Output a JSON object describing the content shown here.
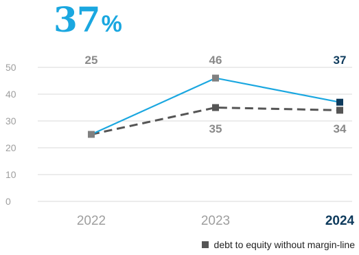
{
  "headline": {
    "value": "37",
    "unit": "%"
  },
  "legend": {
    "label": "debt to equity without margin-line"
  },
  "chart_data": {
    "type": "line",
    "categories": [
      "2022",
      "2023",
      "2024"
    ],
    "highlight_category": "2024",
    "ylim": [
      0,
      50
    ],
    "yticks": [
      "0",
      "10",
      "20",
      "30",
      "40",
      "50"
    ],
    "grid": true,
    "legend_position": "bottom-right",
    "series": [
      {
        "values": [
          25,
          46,
          37
        ],
        "labels": [
          "25",
          "46",
          "37"
        ],
        "color": "#1aa7e0",
        "style": "solid",
        "label_position": "top"
      },
      {
        "name": "debt to equity without margin-line",
        "values": [
          25,
          35,
          34
        ],
        "labels": [
          "",
          "35",
          "34"
        ],
        "color": "#555555",
        "style": "dashed",
        "label_position": "below"
      }
    ],
    "colors": {
      "primary": "#1aa7e0",
      "secondary": "#555555",
      "label_gray": "#8a8a8a",
      "highlight": "#0d3a5c",
      "grid": "#d9d9d9",
      "axis_text": "#9e9e9e"
    }
  }
}
